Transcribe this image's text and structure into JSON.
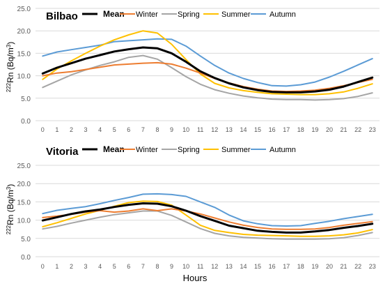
{
  "figure": {
    "ylabel_prefix": "222",
    "ylabel_text": "Rn (Bq/m",
    "ylabel_sup": "3",
    "ylabel_close": ")",
    "xlabel": "Hours"
  },
  "chart_data": [
    {
      "type": "line",
      "title": "Bilbao",
      "xlabel": "",
      "ylabel": "222Rn (Bq/m3)",
      "x": [
        0,
        1,
        2,
        3,
        4,
        5,
        6,
        7,
        8,
        9,
        10,
        11,
        12,
        13,
        14,
        15,
        16,
        17,
        18,
        19,
        20,
        21,
        22,
        23
      ],
      "ylim": [
        0,
        25
      ],
      "yticks": [
        "0.0",
        "5.0",
        "10.0",
        "15.0",
        "20.0",
        "25.0"
      ],
      "grid": true,
      "legend_position": "top",
      "series": [
        {
          "name": "Mean",
          "color": "#000000",
          "values": [
            10.5,
            11.8,
            12.8,
            13.8,
            14.6,
            15.4,
            15.9,
            16.3,
            16.1,
            15.0,
            13.1,
            11.0,
            9.5,
            8.3,
            7.4,
            6.8,
            6.4,
            6.3,
            6.3,
            6.5,
            6.9,
            7.6,
            8.6,
            9.6
          ]
        },
        {
          "name": "Winter",
          "color": "#ED7D31",
          "values": [
            10.0,
            10.6,
            10.9,
            11.4,
            11.9,
            12.4,
            12.6,
            12.8,
            12.9,
            12.6,
            11.7,
            10.6,
            9.4,
            8.4,
            7.6,
            7.0,
            6.6,
            6.5,
            6.6,
            6.8,
            7.2,
            7.8,
            8.5,
            9.2
          ]
        },
        {
          "name": "Spring",
          "color": "#A5A5A5",
          "values": [
            7.4,
            8.8,
            10.2,
            11.3,
            12.3,
            13.1,
            14.1,
            14.5,
            13.7,
            11.8,
            9.8,
            8.1,
            6.9,
            6.1,
            5.5,
            5.1,
            4.8,
            4.7,
            4.7,
            4.6,
            4.7,
            4.9,
            5.4,
            6.2
          ]
        },
        {
          "name": "Summer",
          "color": "#FFC000",
          "values": [
            9.2,
            11.5,
            13.3,
            15.0,
            16.6,
            18.0,
            19.1,
            20.0,
            19.5,
            17.0,
            13.6,
            10.4,
            8.3,
            7.3,
            6.7,
            6.3,
            6.0,
            5.9,
            5.8,
            5.8,
            6.0,
            6.4,
            7.2,
            8.2
          ]
        },
        {
          "name": "Autumn",
          "color": "#5B9BD5",
          "values": [
            14.4,
            15.3,
            15.8,
            16.3,
            16.8,
            17.6,
            17.8,
            18.0,
            18.2,
            18.1,
            16.6,
            14.4,
            12.3,
            10.6,
            9.4,
            8.5,
            7.8,
            7.7,
            8.0,
            8.6,
            9.7,
            11.0,
            12.4,
            13.8
          ]
        }
      ]
    },
    {
      "type": "line",
      "title": "Vitoria",
      "xlabel": "Hours",
      "ylabel": "222Rn (Bq/m3)",
      "x": [
        0,
        1,
        2,
        3,
        4,
        5,
        6,
        7,
        8,
        9,
        10,
        11,
        12,
        13,
        14,
        15,
        16,
        17,
        18,
        19,
        20,
        21,
        22,
        23
      ],
      "ylim": [
        0,
        25
      ],
      "yticks": [
        "0.0",
        "5.0",
        "10.0",
        "15.0",
        "20.0",
        "25.0"
      ],
      "grid": true,
      "legend_position": "top",
      "series": [
        {
          "name": "Mean",
          "color": "#000000",
          "values": [
            9.9,
            10.8,
            11.7,
            12.4,
            12.9,
            13.6,
            14.2,
            14.6,
            14.5,
            13.8,
            12.6,
            11.1,
            9.8,
            8.5,
            7.8,
            7.1,
            6.8,
            6.6,
            6.6,
            6.9,
            7.3,
            7.9,
            8.4,
            9.0
          ]
        },
        {
          "name": "Winter",
          "color": "#ED7D31",
          "values": [
            10.7,
            11.1,
            11.6,
            12.2,
            12.6,
            12.2,
            12.5,
            13.1,
            12.6,
            13.1,
            12.5,
            11.7,
            10.6,
            9.5,
            8.6,
            8.0,
            7.6,
            7.5,
            7.5,
            7.6,
            8.0,
            8.6,
            9.1,
            9.6
          ]
        },
        {
          "name": "Spring",
          "color": "#A5A5A5",
          "values": [
            7.6,
            8.3,
            9.2,
            10.0,
            10.8,
            11.5,
            12.0,
            12.5,
            12.5,
            11.3,
            9.5,
            7.7,
            6.4,
            5.7,
            5.3,
            5.1,
            4.9,
            4.8,
            4.8,
            4.8,
            4.9,
            5.2,
            5.8,
            6.6
          ]
        },
        {
          "name": "Summer",
          "color": "#FFC000",
          "values": [
            8.2,
            9.3,
            10.5,
            11.7,
            12.7,
            13.8,
            14.8,
            15.2,
            15.1,
            14.1,
            11.4,
            8.6,
            7.2,
            6.6,
            6.1,
            5.9,
            5.8,
            5.7,
            5.6,
            5.6,
            5.7,
            6.0,
            6.5,
            7.4
          ]
        },
        {
          "name": "Autumn",
          "color": "#5B9BD5",
          "values": [
            11.8,
            12.7,
            13.2,
            13.7,
            14.5,
            15.4,
            16.2,
            17.1,
            17.2,
            17.0,
            16.5,
            15.0,
            13.5,
            11.4,
            9.8,
            9.0,
            8.5,
            8.4,
            8.5,
            9.1,
            9.7,
            10.4,
            11.0,
            11.6
          ]
        }
      ]
    }
  ]
}
